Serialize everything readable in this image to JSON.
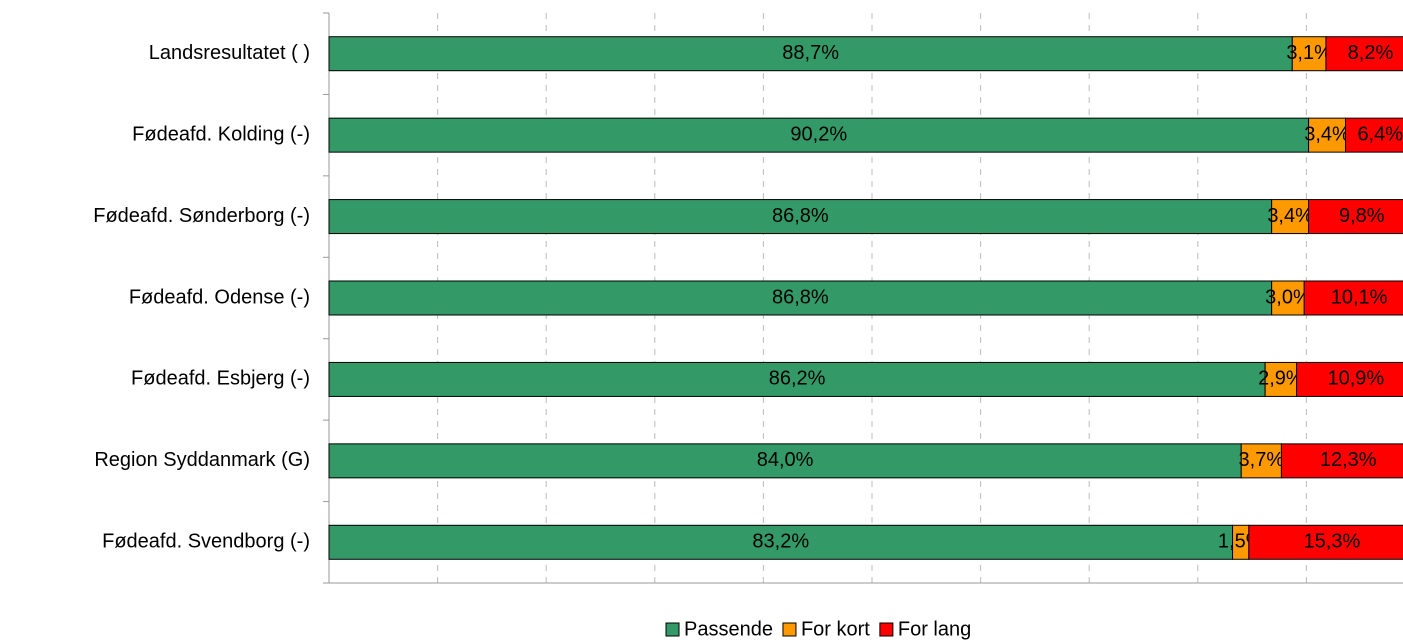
{
  "chart_data": {
    "type": "stacked_barh",
    "categories": [
      "Landsresultatet ( )",
      "Fødeafd. Kolding (-)",
      "Fødeafd. Sønderborg (-)",
      "Fødeafd. Odense (-)",
      "Fødeafd. Esbjerg (-)",
      "Region Syddanmark (G)",
      "Fødeafd. Svendborg (-)"
    ],
    "series": [
      {
        "name": "Passende",
        "color": "#339966",
        "values": [
          88.7,
          90.2,
          86.8,
          86.8,
          86.2,
          84.0,
          83.2
        ],
        "value_labels": [
          "88,7%",
          "90,2%",
          "86,8%",
          "86,8%",
          "86,2%",
          "84,0%",
          "83,2%"
        ]
      },
      {
        "name": "For kort",
        "color": "#ff9900",
        "values": [
          3.1,
          3.4,
          3.4,
          3.0,
          2.9,
          3.7,
          1.5
        ],
        "value_labels": [
          "3,1%",
          "3,4%",
          "3,4%",
          "3,0%",
          "2,9%",
          "3,7%",
          "1,5%"
        ]
      },
      {
        "name": "For lang",
        "color": "#ff0000",
        "values": [
          8.2,
          6.4,
          9.8,
          10.1,
          10.9,
          12.3,
          15.3
        ],
        "value_labels": [
          "8,2%",
          "6,4%",
          "9,8%",
          "10,1%",
          "10,9%",
          "12,3%",
          "15,3%"
        ]
      }
    ],
    "xlim": [
      0,
      100
    ],
    "xticks": [
      0,
      10,
      20,
      30,
      40,
      50,
      60,
      70,
      80,
      90,
      100
    ],
    "grid": true,
    "legend": "bottom"
  }
}
